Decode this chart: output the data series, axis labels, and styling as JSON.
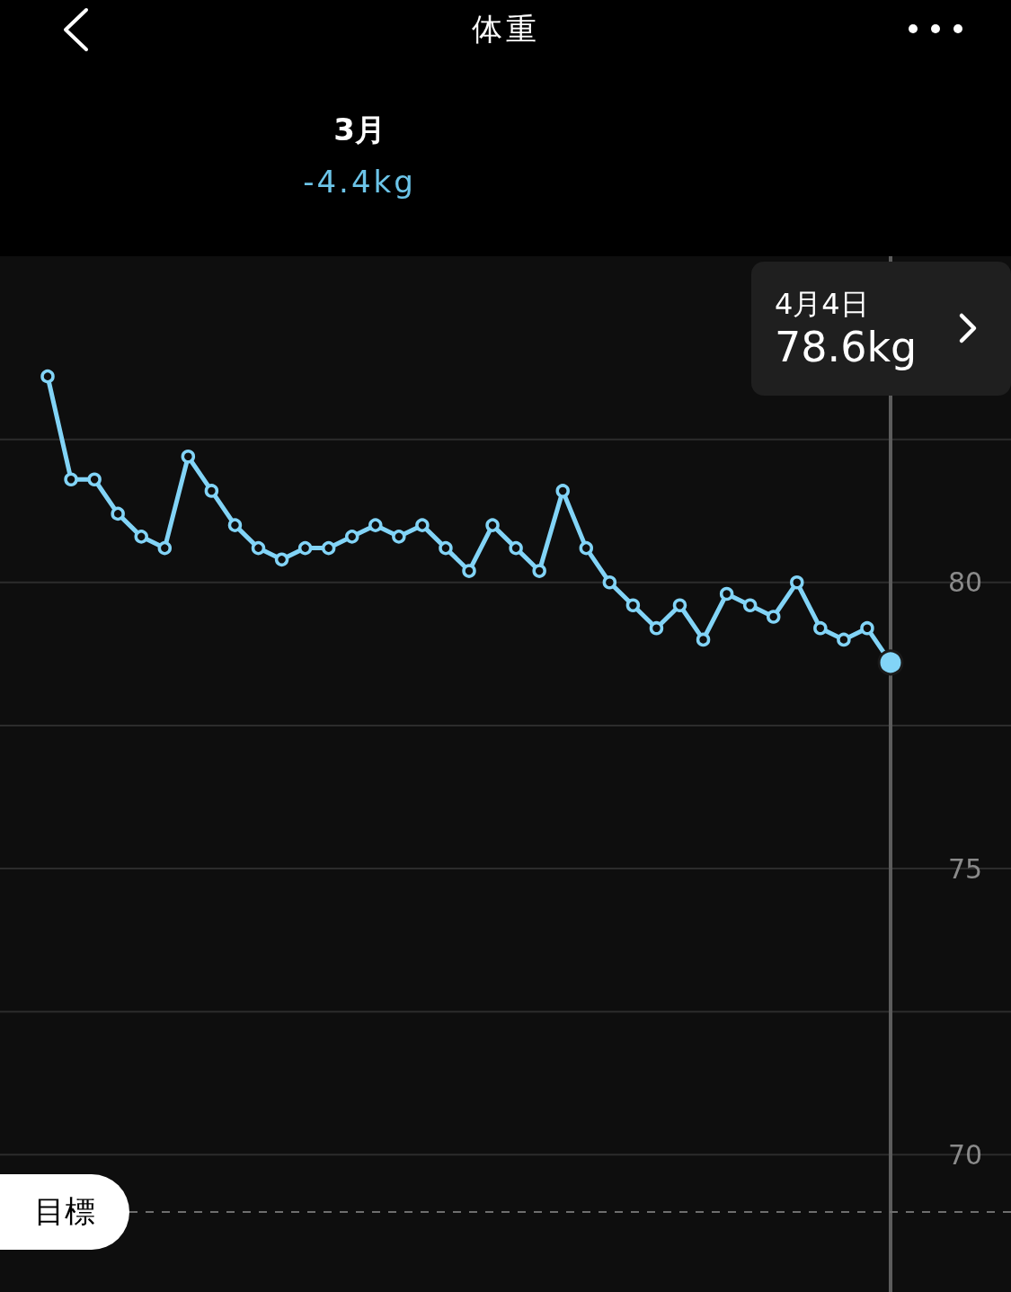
{
  "chart_data": {
    "type": "line",
    "title": "体重",
    "subtitle": "3月",
    "annotations": [
      "-4.4kg",
      "4月4日",
      "78.6kg"
    ],
    "categories": [
      null,
      null,
      null,
      null,
      null,
      null,
      null,
      null,
      null,
      null,
      null,
      null,
      null,
      null,
      null,
      null,
      null,
      null,
      null,
      null,
      null,
      null,
      null,
      null,
      null,
      null,
      null,
      null,
      null,
      null,
      null,
      null,
      null,
      null,
      null,
      null,
      null
    ],
    "series": [
      {
        "color": "#82d4f7",
        "values": [
          83.6,
          81.8,
          81.8,
          81.2,
          80.8,
          80.6,
          82.2,
          81.6,
          81.0,
          80.6,
          80.4,
          80.6,
          80.6,
          80.8,
          81.0,
          80.8,
          81.0,
          80.6,
          80.2,
          81.0,
          80.6,
          80.2,
          81.6,
          80.6,
          80.0,
          79.6,
          79.2,
          79.6,
          79.0,
          79.8,
          79.6,
          79.4,
          80.0,
          79.2,
          79.0,
          79.2,
          78.6
        ]
      }
    ],
    "ylim": [
      67.6,
      85.7
    ],
    "yticks": [
      70,
      {
        "value": 72.5,
        "label": null
      },
      75,
      {
        "value": 77.5,
        "label": null
      },
      80,
      {
        "value": 82.5,
        "label": null
      }
    ],
    "ref_lines": [
      {
        "axis": "y",
        "value": 69,
        "label": "目標",
        "line_style": "dashed",
        "color": "#6e6e6e"
      }
    ],
    "grid": "y",
    "tick_labels": "y",
    "marker": "circle",
    "line_style": "solid"
  }
}
